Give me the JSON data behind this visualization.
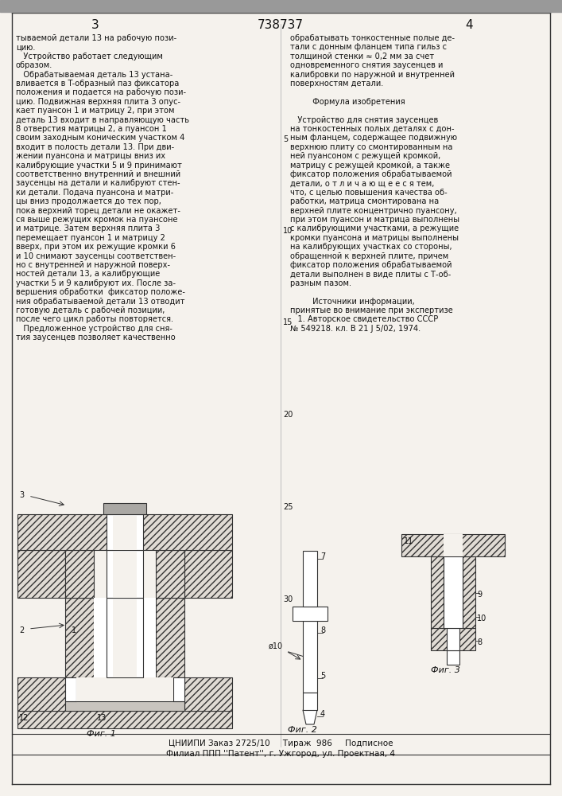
{
  "bg_color": "#f0ede8",
  "paper_color": "#f5f2ed",
  "border_color": "#333333",
  "text_color": "#111111",
  "page_number_left": "3",
  "page_number_center": "738737",
  "page_number_right": "4",
  "col1_lines": [
    "тываемой детали 13 на рабочую пози-",
    "цию.",
    "   Устройство работает следующим",
    "образом.",
    "   Обрабатываемая деталь 13 устана-",
    "вливается в T-образный паз фиксатора",
    "положения и подается на рабочую пози-",
    "цию. Подвижная верхняя плита 3 опус-",
    "кает пуансон 1 и матрицу 2, при этом",
    "деталь 13 входит в направляющую часть",
    "8 отверстия матрицы 2, а пуансон 1",
    "своим заходным коническим участком 4",
    "входит в полость детали 13. При дви-",
    "жении пуансона и матрицы вниз их",
    "калибрующие участки 5 и 9 принимают",
    "соответственно внутренний и внешний",
    "заусенцы на детали и калибруют стен-",
    "ки детали. Подача пуансона и матри-",
    "цы вниз продолжается до тех пор,",
    "пока верхний торец детали не окажет-",
    "ся выше режущих кромок на пуансоне",
    "и матрице. Затем верхняя плита 3",
    "перемещает пуансон 1 и матрицу 2",
    "вверх, при этом их режущие кромки 6",
    "и 10 снимают заусенцы соответствен-",
    "но с внутренней и наружной поверх-",
    "ностей детали 13, а калибрующие",
    "участки 5 и 9 калибруют их. После за-",
    "вершения обработки  фиксатор положе-",
    "ния обрабатываемой детали 13 отводит",
    "готовую деталь с рабочей позиции,",
    "после чего цикл работы повторяется.",
    "   Предложенное устройство для сня-",
    "тия заусенцев позволяет качественно"
  ],
  "col2_lines": [
    "обрабатывать тонкостенные полые де-",
    "тали с донным фланцем типа гильз с",
    "толщиной стенки ≈ 0,2 мм за счет",
    "одновременного снятия заусенцев и",
    "калибровки по наружной и внутренней",
    "поверхностям детали.",
    "",
    "         Формула изобретения",
    "",
    "   Устройство для снятия заусенцев",
    "на тонкостенных полых деталях с дон-",
    "ным фланцем, содержащее подвижную",
    "верхнюю плиту со смонтированным на",
    "ней пуансоном с режущей кромкой,",
    "матрицу с режущей кромкой, а также",
    "фиксатор положения обрабатываемой",
    "детали, о т л и ч а ю щ е е с я тем,",
    "что, с целью повышения качества об-",
    "работки, матрица смонтирована на",
    "верхней плите концентрично пуансону,",
    "при этом пуансон и матрица выполнены",
    "с калибрующими участками, а режущие",
    "кромки пуансона и матрицы выполнены",
    "на калибрующих участках со стороны,",
    "обращенной к верхней плите, причем",
    "фиксатор положения обрабатываемой",
    "детали выполнен в виде плиты с Т-об-",
    "разным пазом.",
    "",
    "         Источники информации,",
    "принятые во внимание при экспертизе",
    "   1. Авторское свидетельство СССР",
    "№ 549218. кл. В 21 J 5/02, 1974."
  ],
  "footer1": "ЦНИИПИ Заказ 2725/10     Тираж  986     Подписное",
  "footer2": "Филиал ППП ''Патент'', г. Ужгород, ул. Проектная, 4",
  "line_numbers": [
    "5",
    "10",
    "15",
    "20",
    "25",
    "30"
  ],
  "line_number_y": [
    830,
    715,
    600,
    484,
    368,
    252
  ]
}
